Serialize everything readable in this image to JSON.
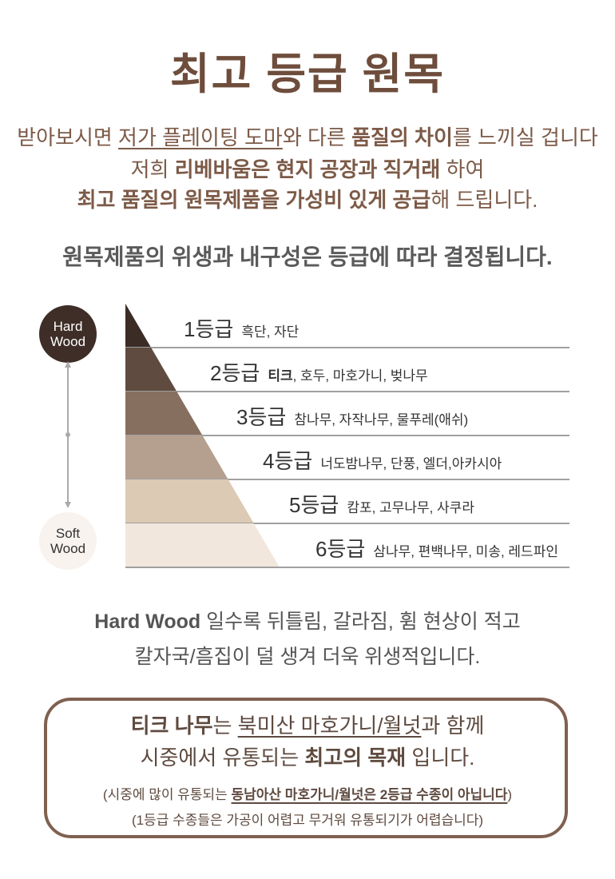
{
  "title": "최고 등급 원목",
  "intro": {
    "line1": [
      {
        "t": "받아보시면 ",
        "s": ""
      },
      {
        "t": "저가 플레이팅 도마",
        "s": "u"
      },
      {
        "t": "와 다른 ",
        "s": ""
      },
      {
        "t": "품질의 차이",
        "s": "b"
      },
      {
        "t": "를 느끼실 겁니다",
        "s": ""
      }
    ],
    "line2": [
      {
        "t": "저희 ",
        "s": ""
      },
      {
        "t": "리베바움은 현지 공장과 직거래",
        "s": "b"
      },
      {
        "t": " 하여",
        "s": ""
      }
    ],
    "line3": [
      {
        "t": "최고 품질의 원목제품을 가성비 있게 공급",
        "s": "b"
      },
      {
        "t": "해 드립니다.",
        "s": ""
      }
    ]
  },
  "subtitle": "원목제품의 위생과 내구성은 등급에 따라 결정됩니다.",
  "scale": {
    "top": "Hard Wood",
    "bottom": "Soft Wood"
  },
  "grades": [
    {
      "label": "1등급",
      "bold": "",
      "trees": "흑단, 자단",
      "color": "#3b2c25"
    },
    {
      "label": "2등급",
      "bold": "티크",
      "trees": ", 호두, 마호가니, 벚나무",
      "color": "#5f4b3f"
    },
    {
      "label": "3등급",
      "bold": "",
      "trees": "참나무, 자작나무, 물푸레(애쉬)",
      "color": "#876f5f"
    },
    {
      "label": "4등급",
      "bold": "",
      "trees": "너도밤나무, 단풍, 엘더,아카시아",
      "color": "#b59f8f"
    },
    {
      "label": "5등급",
      "bold": "",
      "trees": "캄포, 고무나무, 사쿠라",
      "color": "#dccab4"
    },
    {
      "label": "6등급",
      "bold": "",
      "trees": "삼나무, 편백나무, 미송, 레드파인",
      "color": "#f2e7dd"
    }
  ],
  "note": {
    "line1": [
      {
        "t": "Hard Wood",
        "s": "b"
      },
      {
        "t": " 일수록 뒤틀림, 갈라짐, 휨 현상이 적고",
        "s": ""
      }
    ],
    "line2": "칼자국/흠집이 덜 생겨 더욱 위생적입니다."
  },
  "box": {
    "line1": [
      {
        "t": "티크 나무",
        "s": "b"
      },
      {
        "t": "는 ",
        "s": ""
      },
      {
        "t": "북미산 마호가니/월넛",
        "s": "u"
      },
      {
        "t": "과 함께",
        "s": ""
      }
    ],
    "line2": [
      {
        "t": "시중에서 유통되는 ",
        "s": ""
      },
      {
        "t": "최고의 목재",
        "s": "b"
      },
      {
        "t": " 입니다.",
        "s": ""
      }
    ],
    "line3": [
      {
        "t": "(시중에 많이 유통되는 ",
        "s": ""
      },
      {
        "t": "동남아산 마호가니/월넛은 2등급 수종이 아닙니다",
        "s": "b u"
      },
      {
        "t": ")",
        "s": ""
      }
    ],
    "line4": "(1등급 수종들은 가공이 어렵고 무거워 유통되기가 어렵습니다)"
  },
  "colors": {
    "brand": "#6e4d3c",
    "border": "#806050",
    "rule": "#a0a0a0"
  }
}
